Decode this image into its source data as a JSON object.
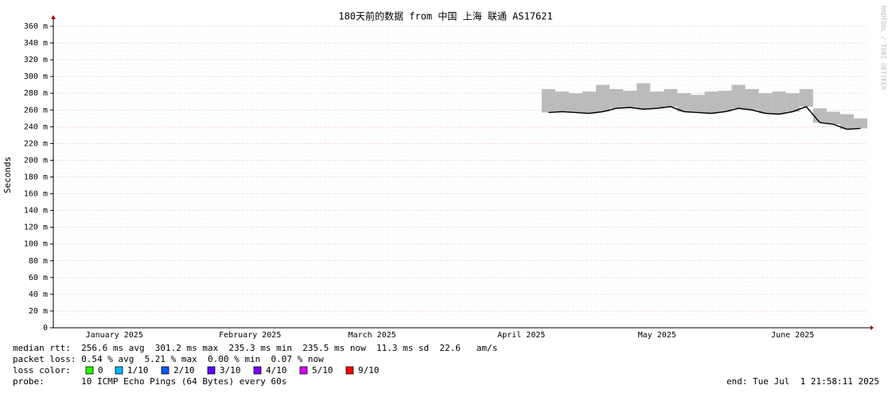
{
  "chart_data": {
    "type": "line",
    "title": "180天前的数据 from 中国 上海 联通 AS17621",
    "y_label": "Seconds",
    "watermark": "RRDTOOL / TOBI OETIKER",
    "categories": [
      null,
      null,
      null,
      null,
      "January 2025",
      null,
      null,
      null,
      null,
      null,
      null,
      null,
      null,
      null,
      "February 2025",
      null,
      null,
      null,
      null,
      null,
      null,
      null,
      null,
      "March 2025",
      null,
      null,
      null,
      null,
      null,
      null,
      null,
      null,
      null,
      null,
      "April 2025",
      null,
      null,
      null,
      null,
      null,
      null,
      null,
      null,
      null,
      "May 2025",
      null,
      null,
      null,
      null,
      null,
      null,
      null,
      null,
      null,
      "June 2025",
      null,
      null,
      null,
      null,
      null
    ],
    "series": [
      {
        "color": "#bbbbbb",
        "values": [
          null,
          null,
          null,
          null,
          null,
          null,
          null,
          null,
          null,
          null,
          null,
          null,
          null,
          null,
          null,
          null,
          null,
          null,
          null,
          null,
          null,
          null,
          null,
          null,
          null,
          null,
          null,
          null,
          null,
          null,
          null,
          null,
          null,
          null,
          null,
          null,
          0.285,
          0.282,
          0.28,
          0.282,
          0.29,
          0.285,
          0.283,
          0.292,
          0.282,
          0.285,
          0.28,
          0.278,
          0.282,
          0.283,
          0.29,
          0.285,
          0.28,
          0.282,
          0.28,
          0.285,
          0.262,
          0.258,
          0.255,
          0.25
        ]
      },
      {
        "color": "#000000",
        "values": [
          null,
          null,
          null,
          null,
          null,
          null,
          null,
          null,
          null,
          null,
          null,
          null,
          null,
          null,
          null,
          null,
          null,
          null,
          null,
          null,
          null,
          null,
          null,
          null,
          null,
          null,
          null,
          null,
          null,
          null,
          null,
          null,
          null,
          null,
          null,
          null,
          0.257,
          0.258,
          0.257,
          0.256,
          0.258,
          0.262,
          0.263,
          0.261,
          0.262,
          0.264,
          0.258,
          0.257,
          0.256,
          0.258,
          0.262,
          0.26,
          0.256,
          0.255,
          0.258,
          0.264,
          0.245,
          0.243,
          0.237,
          0.238
        ]
      }
    ],
    "ylim": [
      0,
      0.36
    ],
    "yticks": [
      0,
      {
        "value": 0.02,
        "label": "20 m"
      },
      {
        "value": 0.04,
        "label": "40 m"
      },
      {
        "value": 0.06,
        "label": "60 m"
      },
      {
        "value": 0.08,
        "label": "80 m"
      },
      {
        "value": 0.1,
        "label": "100 m"
      },
      {
        "value": 0.12,
        "label": "120 m"
      },
      {
        "value": 0.14,
        "label": "140 m"
      },
      {
        "value": 0.16,
        "label": "160 m"
      },
      {
        "value": 0.18,
        "label": "180 m"
      },
      {
        "value": 0.2,
        "label": "200 m"
      },
      {
        "value": 0.22,
        "label": "220 m"
      },
      {
        "value": 0.24,
        "label": "240 m"
      },
      {
        "value": 0.26,
        "label": "260 m"
      },
      {
        "value": 0.28,
        "label": "280 m"
      },
      {
        "value": 0.3,
        "label": "300 m"
      },
      {
        "value": 0.32,
        "label": "320 m"
      },
      {
        "value": 0.34,
        "label": "340 m"
      },
      {
        "value": 0.36,
        "label": "360 m"
      }
    ],
    "grid": true,
    "stats": {
      "median_rtt": "median rtt:  256.6 ms avg  301.2 ms max  235.3 ms min  235.5 ms now  11.3 ms sd  22.6   am/s",
      "packet_loss": "packet loss: 0.54 % avg  5.21 % max  0.00 % min  0.07 % now",
      "loss_color_label": "loss color:",
      "probe": "probe:       10 ICMP Echo Pings (64 Bytes) every 60s",
      "end": "end: Tue Jul  1 21:58:11 2025"
    },
    "loss_colors": [
      {
        "label": "0",
        "color": "#26ff00"
      },
      {
        "label": "1/10",
        "color": "#00b8ff"
      },
      {
        "label": "2/10",
        "color": "#0059ff"
      },
      {
        "label": "3/10",
        "color": "#5e00ff"
      },
      {
        "label": "4/10",
        "color": "#7e00ff"
      },
      {
        "label": "5/10",
        "color": "#dd00ff"
      },
      {
        "label": "9/10",
        "color": "#ff0000"
      }
    ]
  }
}
